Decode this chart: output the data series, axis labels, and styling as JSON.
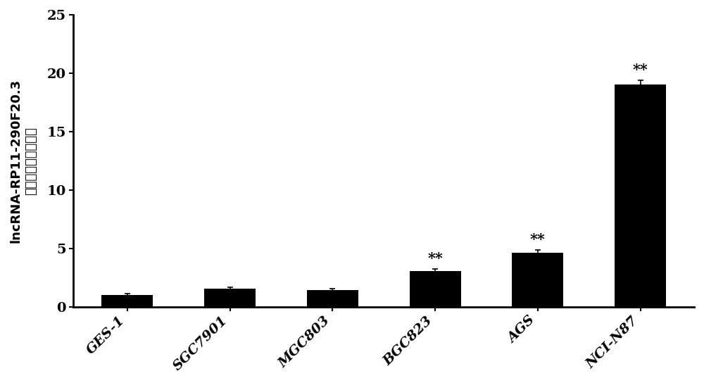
{
  "categories": [
    "GES-1",
    "SGC7901",
    "MGC803",
    "BGC823",
    "AGS",
    "NCI-N87"
  ],
  "values": [
    1.0,
    1.55,
    1.45,
    3.05,
    4.6,
    19.0
  ],
  "errors": [
    0.1,
    0.15,
    0.12,
    0.2,
    0.25,
    0.4
  ],
  "bar_color": "#000000",
  "ylabel_line1": "lncRNA-RP11-290F20.3",
  "ylabel_line2": "表达水平升高的倍数",
  "ylim": [
    0,
    25
  ],
  "yticks": [
    0,
    5,
    10,
    15,
    20,
    25
  ],
  "significance": [
    false,
    false,
    false,
    true,
    true,
    true
  ],
  "sig_label": "**",
  "bar_width": 0.5,
  "background_color": "#ffffff",
  "tick_fontsize": 14,
  "ylabel_fontsize": 13,
  "sig_fontsize": 15,
  "ytick_fontsize": 14
}
